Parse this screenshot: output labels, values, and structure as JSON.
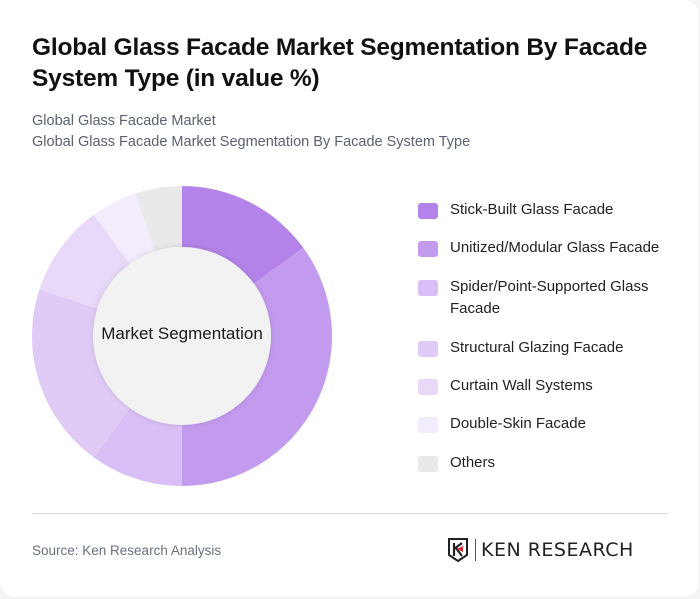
{
  "header": {
    "title": "Global Glass Facade Market Segmentation By Facade System Type (in value %)",
    "subtitle_1": "Global Glass Facade Market",
    "subtitle_2": "Global Glass Facade Market Segmentation By Facade System Type"
  },
  "chart": {
    "center_label": "Market Segmentation"
  },
  "legend": [
    {
      "label": "Stick-Built Glass Facade",
      "color": "#b383e9"
    },
    {
      "label": "Unitized/Modular Glass Facade",
      "color": "#c39bee"
    },
    {
      "label": "Spider/Point-Supported Glass Facade",
      "color": "#d9bff5"
    },
    {
      "label": "Structural Glazing Facade",
      "color": "#e0cbf6"
    },
    {
      "label": "Curtain Wall Systems",
      "color": "#e8d9f9"
    },
    {
      "label": "Double-Skin Facade",
      "color": "#f3ecfc"
    },
    {
      "label": "Others",
      "color": "#e9e9e9"
    }
  ],
  "footer": {
    "source": "Source: Ken Research Analysis",
    "logo_text": "KEN RESEARCH"
  },
  "chart_data": {
    "type": "pie",
    "variant": "donut",
    "title": "Global Glass Facade Market Segmentation By Facade System Type (in value %)",
    "center_label": "Market Segmentation",
    "categories": [
      "Stick-Built Glass Facade",
      "Unitized/Modular Glass Facade",
      "Spider/Point-Supported Glass Facade",
      "Structural Glazing Facade",
      "Curtain Wall Systems",
      "Double-Skin Facade",
      "Others"
    ],
    "values": [
      15,
      35,
      10,
      20,
      10,
      5,
      5
    ],
    "colors": [
      "#b383e9",
      "#c39bee",
      "#d9bff5",
      "#e0cbf6",
      "#e8d9f9",
      "#f3ecfc",
      "#e9e9e9"
    ],
    "unit": "%",
    "legend_position": "right",
    "start_angle": "top, clockwise"
  }
}
